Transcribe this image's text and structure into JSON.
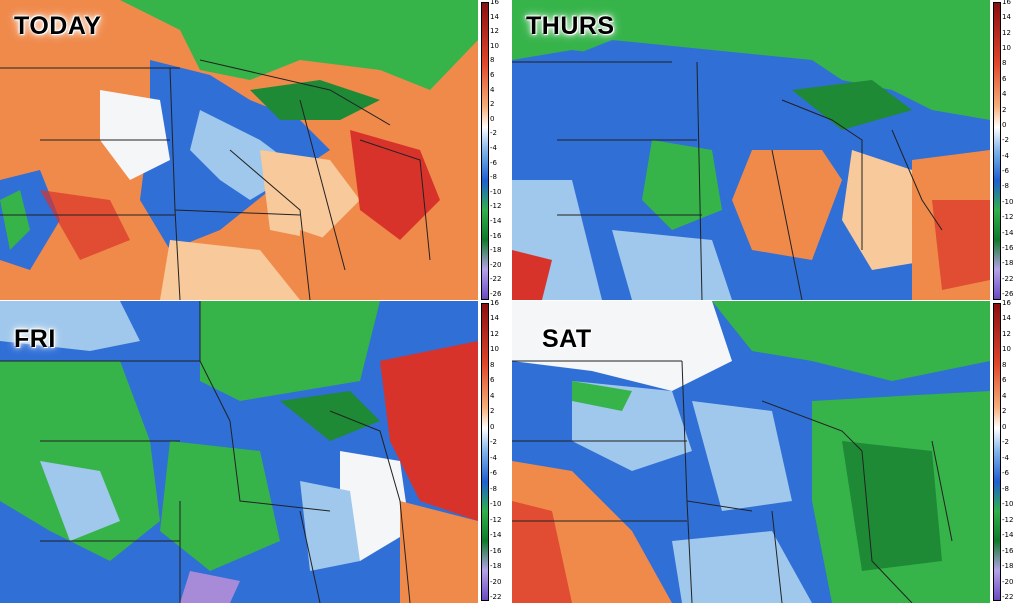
{
  "panels": [
    {
      "label": "TODAY",
      "scheme": "today"
    },
    {
      "label": "THURS",
      "scheme": "thurs"
    },
    {
      "label": "FRI",
      "scheme": "fri"
    },
    {
      "label": "SAT",
      "scheme": "sat"
    }
  ],
  "colorbars": [
    {
      "ticks": [
        "16",
        "14",
        "12",
        "10",
        "8",
        "6",
        "4",
        "2",
        "0",
        "-2",
        "-4",
        "-6",
        "-8",
        "-10",
        "-12",
        "-14",
        "-16",
        "-18",
        "-20",
        "-22",
        "-26"
      ]
    },
    {
      "ticks": [
        "16",
        "14",
        "12",
        "10",
        "8",
        "6",
        "4",
        "2",
        "0",
        "-2",
        "-4",
        "-6",
        "-8",
        "-10",
        "-12",
        "-14",
        "-16",
        "-18",
        "-22",
        "-26"
      ]
    },
    {
      "ticks": [
        "16",
        "14",
        "12",
        "10",
        "8",
        "6",
        "4",
        "2",
        "0",
        "-2",
        "-4",
        "-6",
        "-8",
        "-10",
        "-12",
        "-14",
        "-16",
        "-18",
        "-20",
        "-22"
      ]
    },
    {
      "ticks": [
        "16",
        "14",
        "12",
        "10",
        "8",
        "6",
        "4",
        "2",
        "0",
        "-2",
        "-4",
        "-6",
        "-8",
        "-10",
        "-12",
        "-14",
        "-16",
        "-18",
        "-20",
        "-22"
      ]
    }
  ],
  "colors": {
    "hot": "#d8332a",
    "warm": "#f08a4b",
    "mild": "#f8c99a",
    "neutral": "#f4f6f8",
    "cool": "#9fc8ec",
    "cold": "#2f6fd6",
    "green": "#36b44a",
    "darkgreen": "#1e8a36",
    "purple": "#a88bd8",
    "outline": "#222222"
  }
}
